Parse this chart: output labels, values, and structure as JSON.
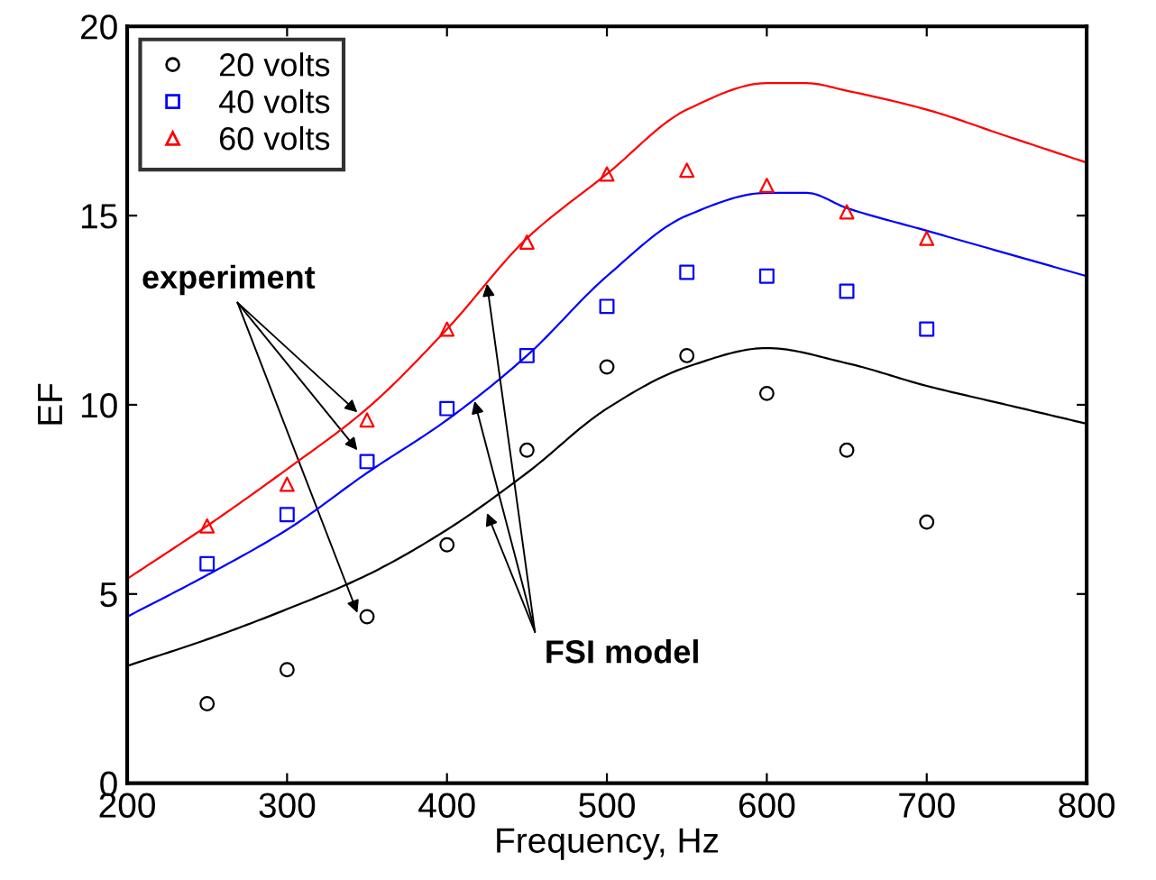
{
  "chart_data": {
    "type": "scatter",
    "xlabel": "Frequency, Hz",
    "ylabel": "EF",
    "xlim": [
      200,
      800
    ],
    "ylim": [
      0,
      20
    ],
    "xticks": [
      200,
      300,
      400,
      500,
      600,
      700,
      800
    ],
    "yticks": [
      0,
      5,
      10,
      15,
      20
    ],
    "grid": false,
    "legend": "top left",
    "series": [
      {
        "name": "20 volts",
        "marker": "circle",
        "color": "#000000",
        "x": [
          250,
          300,
          350,
          400,
          450,
          500,
          550,
          600,
          650,
          700
        ],
        "values": [
          2.1,
          3.0,
          4.4,
          6.3,
          8.8,
          11.0,
          11.3,
          10.3,
          8.8,
          6.9
        ]
      },
      {
        "name": "40 volts",
        "marker": "square",
        "color": "#0000ff",
        "x": [
          250,
          300,
          350,
          400,
          450,
          500,
          550,
          600,
          650,
          700
        ],
        "values": [
          5.8,
          7.1,
          8.5,
          9.9,
          11.3,
          12.6,
          13.5,
          13.4,
          13.0,
          12.0
        ]
      },
      {
        "name": "60 volts",
        "marker": "triangle",
        "color": "#ff0000",
        "x": [
          250,
          300,
          350,
          400,
          450,
          500,
          550,
          600,
          650,
          700
        ],
        "values": [
          6.8,
          7.9,
          9.6,
          12.0,
          14.3,
          16.1,
          16.2,
          15.8,
          15.1,
          14.4
        ]
      },
      {
        "type": "line",
        "color": "#000000",
        "x": [
          200,
          250,
          300,
          350,
          400,
          450,
          500,
          550,
          600,
          650,
          700,
          750,
          800
        ],
        "values": [
          3.1,
          3.8,
          4.6,
          5.5,
          6.7,
          8.2,
          9.9,
          11.0,
          11.5,
          11.1,
          10.5,
          10.0,
          9.5
        ]
      },
      {
        "type": "line",
        "color": "#0000ff",
        "x": [
          200,
          250,
          300,
          350,
          400,
          450,
          500,
          550,
          600,
          625,
          650,
          700,
          750,
          800
        ],
        "values": [
          4.4,
          5.5,
          6.7,
          8.2,
          9.6,
          11.3,
          13.4,
          15.0,
          15.6,
          15.6,
          15.2,
          14.6,
          14.0,
          13.4
        ]
      },
      {
        "type": "line",
        "color": "#ff0000",
        "x": [
          200,
          250,
          300,
          350,
          400,
          450,
          500,
          550,
          600,
          625,
          650,
          700,
          750,
          800
        ],
        "values": [
          5.4,
          6.8,
          8.3,
          9.9,
          12.0,
          14.4,
          16.1,
          17.8,
          18.5,
          18.5,
          18.3,
          17.8,
          17.1,
          16.4
        ]
      }
    ],
    "annotations": [
      {
        "text": "experiment",
        "x": 344,
        "y": 9.8
      },
      {
        "text": "FSI model",
        "x": 425,
        "y": 13.2
      }
    ]
  }
}
